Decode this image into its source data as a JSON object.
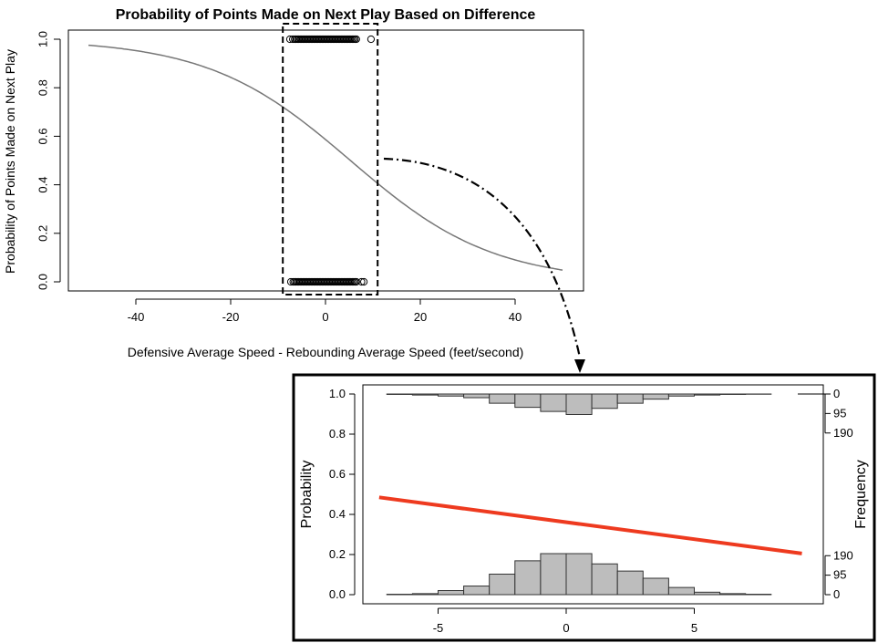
{
  "chart_data": [
    {
      "type": "scatter",
      "title": "Probability of Points Made on Next Play Based on Difference",
      "xlabel": "Defensive Average Speed - Rebounding Average Speed (feet/second)",
      "ylabel": "Probability of Points Made on Next Play",
      "xlim": [
        -50,
        50
      ],
      "ylim": [
        0,
        1
      ],
      "x_ticks": [
        "-40",
        "-20",
        "0",
        "20",
        "40"
      ],
      "y_ticks": [
        "0.0",
        "0.2",
        "0.4",
        "0.6",
        "0.8",
        "1.0"
      ],
      "logistic_curve": {
        "x_start": -50,
        "x_end": 50,
        "intercept": 0.35,
        "slope": -0.0665,
        "color": "#777777"
      },
      "points_y1": {
        "x_dense_range": [
          -6.5,
          6.5
        ],
        "outliers_x": [
          -7.5,
          -6.9,
          9.6
        ],
        "y": 1
      },
      "points_y0": {
        "x_dense_range": [
          -6.5,
          6.5
        ],
        "outliers_x": [
          -7.3,
          -6.8,
          7.6,
          8.1
        ],
        "y": 0
      },
      "highlight_box": {
        "x_range": [
          -9,
          11
        ],
        "style": "dashed"
      },
      "grid": false
    },
    {
      "type": "bar",
      "title": "",
      "xlabel": "",
      "ylabel": "Probability",
      "ylabel_right": "Frequency",
      "xlim": [
        -8,
        10
      ],
      "ylim": [
        0,
        1
      ],
      "x_ticks": [
        "-5",
        "0",
        "5"
      ],
      "y_ticks": [
        "0.0",
        "0.2",
        "0.4",
        "0.6",
        "0.8",
        "1.0"
      ],
      "freq_ticks_top": [
        "0",
        "95",
        "190"
      ],
      "freq_ticks_bottom": [
        "190",
        "95",
        "0"
      ],
      "bins_left_edges": [
        -7,
        -6,
        -5,
        -4,
        -3,
        -2,
        -1,
        0,
        1,
        2,
        3,
        4,
        5,
        6,
        7
      ],
      "bin_width": 1,
      "hist_bottom_counts": [
        2,
        5,
        20,
        42,
        100,
        165,
        200,
        200,
        150,
        115,
        80,
        35,
        12,
        5,
        2
      ],
      "hist_top_counts": [
        2,
        5,
        10,
        18,
        45,
        65,
        85,
        100,
        70,
        45,
        25,
        10,
        5,
        2,
        1
      ],
      "fitted_line": {
        "x": [
          -7.3,
          9.2
        ],
        "y": [
          0.485,
          0.205
        ],
        "color": "#ee3a1f"
      },
      "grid": false
    }
  ]
}
